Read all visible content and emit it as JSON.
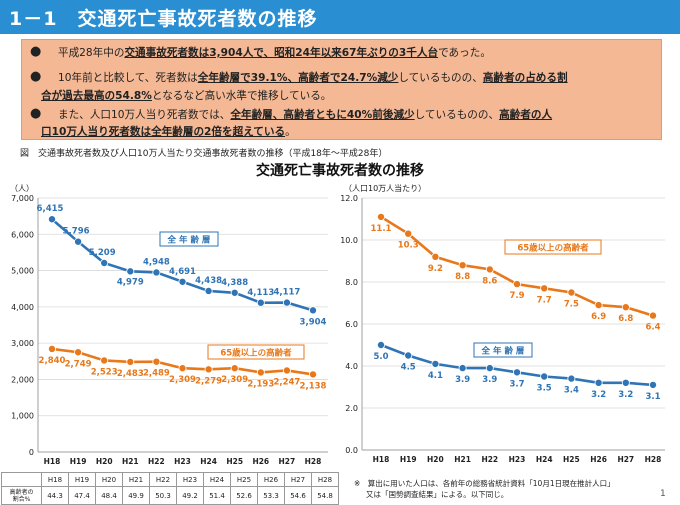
{
  "header": {
    "title": "1－1　交通死亡事故死者数の推移"
  },
  "summary": {
    "bullet": "●",
    "line1": [
      {
        "t": "平成28年中の",
        "b": false
      },
      {
        "t": "交通事故死者数は3,904人で、昭和24年以来67年ぶりの3千人台",
        "b": true
      },
      {
        "t": "であった。",
        "b": false
      }
    ],
    "line2": [
      {
        "t": "10年前と比較して、死者数は",
        "b": false
      },
      {
        "t": "全年齢層で39.1%、高齢者で24.7%減少",
        "b": true
      },
      {
        "t": "しているものの、",
        "b": false
      },
      {
        "t": "高齢者の占める割",
        "b": true
      }
    ],
    "line3": [
      {
        "t": "合が過去最高の54.8%",
        "b": true
      },
      {
        "t": "となるなど高い水準で推移している。",
        "b": false
      }
    ],
    "line4": [
      {
        "t": "また、人口10万人当り死者数では、",
        "b": false
      },
      {
        "t": "全年齢層、高齢者ともに40%前後減少",
        "b": true
      },
      {
        "t": "しているものの、",
        "b": false
      },
      {
        "t": "高齢者の人",
        "b": true
      }
    ],
    "line5": [
      {
        "t": "口10万人当り死者数は全年齢層の2倍を超えている",
        "b": true
      },
      {
        "t": "。",
        "b": false
      }
    ]
  },
  "figure_caption": "図　交通事故死者数及び人口10万人当たり交通事故死者数の推移（平成18年～平成28年）",
  "chart_title": "交通死亡事故死者数の推移",
  "colors": {
    "title_bar": "#2a8fd2",
    "all_ages": "#2f74b5",
    "elderly": "#e8781a",
    "summary_bg": "#f4b895",
    "orange_text": "#e06c12",
    "blue_text": "#1f5fa8"
  },
  "chart_data": [
    {
      "type": "line",
      "unit_label": "（人）",
      "categories": [
        "H18",
        "H19",
        "H20",
        "H21",
        "H22",
        "H23",
        "H24",
        "H25",
        "H26",
        "H27",
        "H28"
      ],
      "ylim": [
        0,
        7000
      ],
      "yticks": [
        "0",
        "1,000",
        "2,000",
        "3,000",
        "4,000",
        "5,000",
        "6,000",
        "7,000"
      ],
      "grid": true,
      "series": [
        {
          "name": "全 年 齢 層",
          "color": "#2f74b5",
          "values": [
            6415,
            5796,
            5209,
            4979,
            4948,
            4691,
            4438,
            4388,
            4113,
            4117,
            3904
          ],
          "labels": [
            "6,415",
            "5,796",
            "5,209",
            "4,979",
            "4,948",
            "4,691",
            "4,438",
            "4,388",
            "4,113",
            "4,117",
            "3,904"
          ]
        },
        {
          "name": "65歳以上の高齢者",
          "color": "#e8781a",
          "values": [
            2840,
            2749,
            2523,
            2483,
            2489,
            2309,
            2279,
            2309,
            2193,
            2247,
            2138
          ],
          "labels": [
            "2,840",
            "2,749",
            "2,523",
            "2,483",
            "2,489",
            "2,309",
            "2,279",
            "2,309",
            "2,193",
            "2,247",
            "2,138"
          ]
        }
      ]
    },
    {
      "type": "line",
      "unit_label": "（人口10万人当たり）",
      "categories": [
        "H18",
        "H19",
        "H20",
        "H21",
        "H22",
        "H23",
        "H24",
        "H25",
        "H26",
        "H27",
        "H28"
      ],
      "ylim": [
        0,
        12
      ],
      "yticks": [
        "0.0",
        "2.0",
        "4.0",
        "6.0",
        "8.0",
        "10.0",
        "12.0"
      ],
      "grid": true,
      "series": [
        {
          "name": "65歳以上の高齢者",
          "color": "#e8781a",
          "values": [
            11.1,
            10.3,
            9.2,
            8.8,
            8.6,
            7.9,
            7.7,
            7.5,
            6.9,
            6.8,
            6.4
          ],
          "labels": [
            "11.1",
            "10.3",
            "9.2",
            "8.8",
            "8.6",
            "7.9",
            "7.7",
            "7.5",
            "6.9",
            "6.8",
            "6.4"
          ]
        },
        {
          "name": "全 年 齢 層",
          "color": "#2f74b5",
          "values": [
            5.0,
            4.5,
            4.1,
            3.9,
            3.9,
            3.7,
            3.5,
            3.4,
            3.2,
            3.2,
            3.1
          ],
          "labels": [
            "5.0",
            "4.5",
            "4.1",
            "3.9",
            "3.9",
            "3.7",
            "3.5",
            "3.4",
            "3.2",
            "3.2",
            "3.1"
          ]
        }
      ]
    }
  ],
  "ratio_table": {
    "row_header": "高齢者の割合%",
    "row_header_line1": "高齢者の",
    "row_header_line2": "割合%",
    "years": [
      "H18",
      "H19",
      "H20",
      "H21",
      "H22",
      "H23",
      "H24",
      "H25",
      "H26",
      "H27",
      "H28"
    ],
    "values": [
      "44.3",
      "47.4",
      "48.4",
      "49.9",
      "50.3",
      "49.2",
      "51.4",
      "52.6",
      "53.3",
      "54.6",
      "54.8"
    ]
  },
  "note": {
    "line1": "※　算出に用いた人口は、各前年の総務省統計資料「10月1日現在推計人口」",
    "line2": "又は「国勢調査結果」による。以下同じ。"
  },
  "page_number": "1"
}
